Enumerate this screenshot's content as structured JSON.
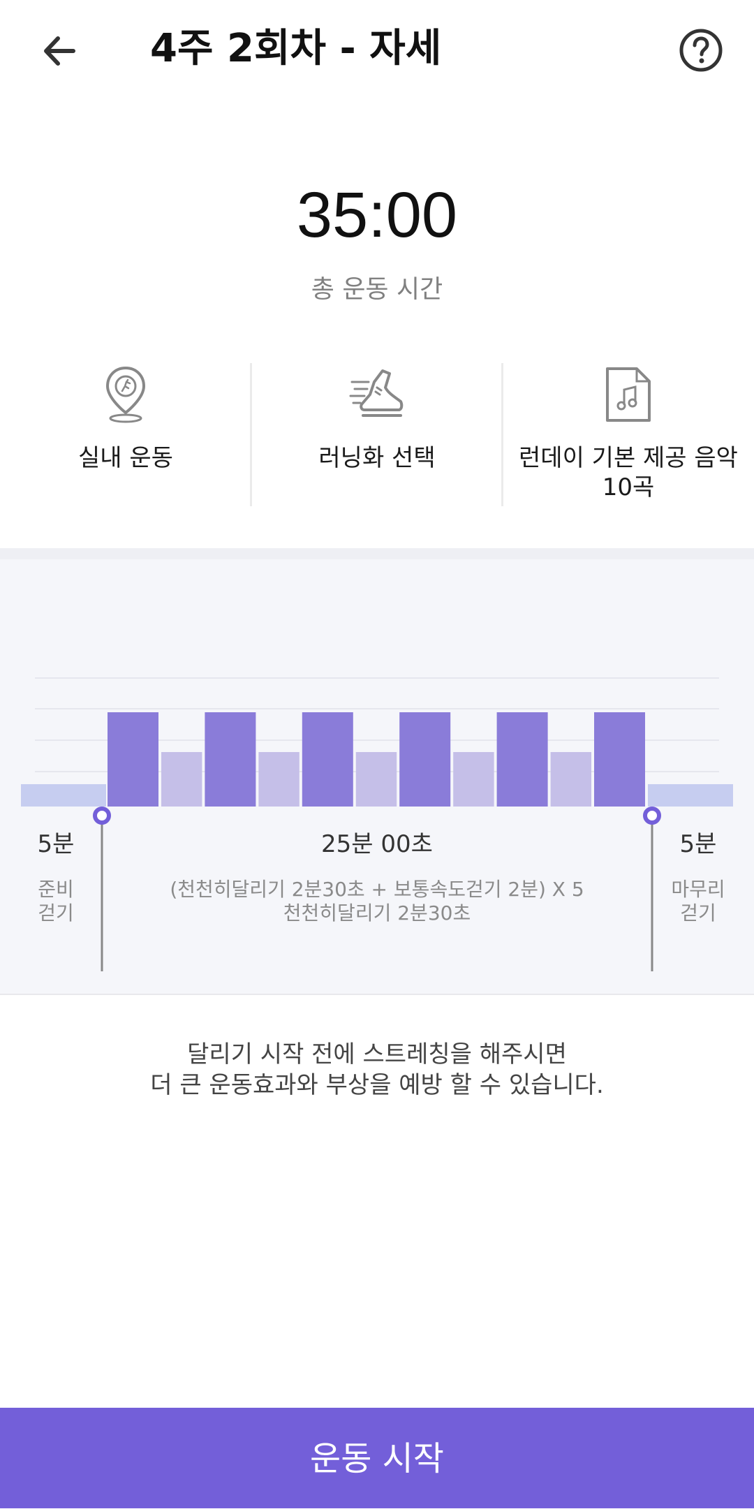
{
  "header": {
    "title": "4주 2회차 - 자세",
    "back_icon": "arrow-left-icon",
    "help_icon": "question-circle-icon"
  },
  "workout": {
    "total_time": "35:00",
    "total_label": "총 운동 시간"
  },
  "info": [
    {
      "icon": "indoor-location-pin-icon",
      "label": "실내 운동"
    },
    {
      "icon": "running-shoe-icon",
      "label": "러닝화 선택"
    },
    {
      "icon": "music-file-icon",
      "label_line1": "런데이 기본 제공 음악",
      "label_line2": "10곡"
    }
  ],
  "segments": {
    "warmup": {
      "duration": "5분",
      "desc_line1": "준비",
      "desc_line2": "걷기"
    },
    "main": {
      "duration": "25분 00초",
      "desc_line1": "(천천히달리기 2분30초 + 보통속도걷기 2분) X 5",
      "desc_line2": "천천히달리기 2분30초"
    },
    "cooldown": {
      "duration": "5분",
      "desc_line1": "마무리",
      "desc_line2": "걷기"
    }
  },
  "chart_data": {
    "type": "bar",
    "intervals": [
      {
        "kind": "warmup-walk",
        "minutes": 5,
        "intensity": 1
      },
      {
        "kind": "slow-run",
        "minutes": 2.5,
        "intensity": 3
      },
      {
        "kind": "normal-walk",
        "minutes": 2,
        "intensity": 2
      },
      {
        "kind": "slow-run",
        "minutes": 2.5,
        "intensity": 3
      },
      {
        "kind": "normal-walk",
        "minutes": 2,
        "intensity": 2
      },
      {
        "kind": "slow-run",
        "minutes": 2.5,
        "intensity": 3
      },
      {
        "kind": "normal-walk",
        "minutes": 2,
        "intensity": 2
      },
      {
        "kind": "slow-run",
        "minutes": 2.5,
        "intensity": 3
      },
      {
        "kind": "normal-walk",
        "minutes": 2,
        "intensity": 2
      },
      {
        "kind": "slow-run",
        "minutes": 2.5,
        "intensity": 3
      },
      {
        "kind": "normal-walk",
        "minutes": 2,
        "intensity": 2
      },
      {
        "kind": "slow-run",
        "minutes": 2.5,
        "intensity": 3
      },
      {
        "kind": "cooldown-walk",
        "minutes": 5,
        "intensity": 1
      }
    ],
    "colors": {
      "slow-run": "#8a7cd9",
      "normal-walk": "#c5bfe8",
      "warmup-walk": "#c6cdf0",
      "cooldown-walk": "#c6cdf0",
      "marker": "#735fd9"
    },
    "grid": true
  },
  "tip": {
    "line1": "달리기 시작 전에 스트레칭을 해주시면",
    "line2": "더 큰 운동효과와 부상을 예방 할 수 있습니다."
  },
  "start_button": {
    "label": "운동 시작",
    "color": "#735fd9"
  }
}
